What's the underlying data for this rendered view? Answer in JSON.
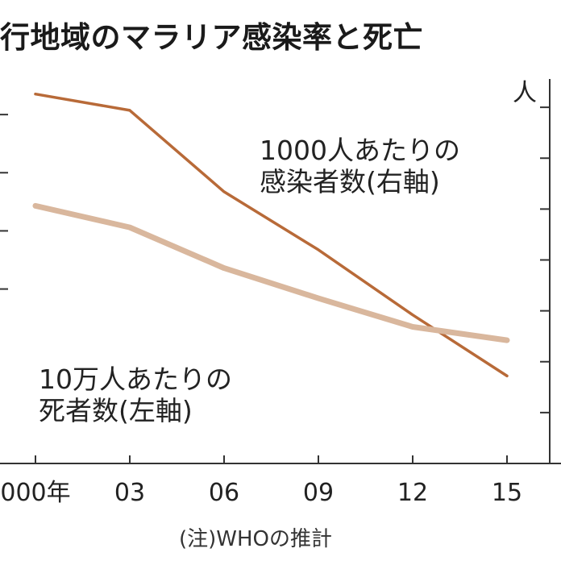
{
  "title": "行地域のマラリア感染率と死亡",
  "right_axis_unit": "人",
  "note": "(注)WHOの推計",
  "series_labels": {
    "infection": [
      "1000人あたりの",
      "感染者数(右軸)"
    ],
    "death": [
      "10万人あたりの",
      "死者数(左軸)"
    ]
  },
  "colors": {
    "infection": "#b86a38",
    "death": "#d9b79d",
    "axis": "#333333"
  },
  "chart_data": {
    "type": "line",
    "x": [
      2000,
      2003,
      2006,
      2009,
      2012,
      2015
    ],
    "x_tick_labels": [
      "000年",
      "03",
      "06",
      "09",
      "12",
      "15"
    ],
    "series": [
      {
        "name": "1000人あたりの感染者数(右軸)",
        "axis": "right",
        "values": [
          363,
          347,
          267,
          210,
          146,
          86
        ]
      },
      {
        "name": "10万人あたりの死者数(左軸)",
        "axis": "left",
        "values": [
          743,
          706,
          636,
          584,
          535,
          512
        ]
      }
    ],
    "y_right_range": [
      0,
      400
    ],
    "y_left_range": [
      300,
      1000
    ],
    "grid": false,
    "legend": "inline"
  }
}
